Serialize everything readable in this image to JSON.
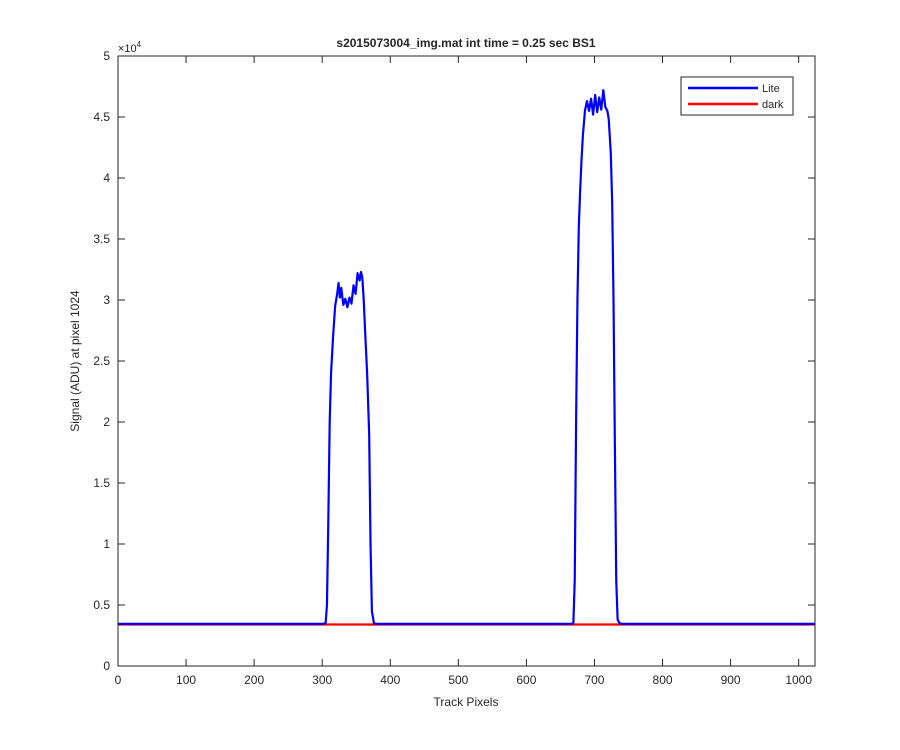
{
  "chart_data": {
    "type": "line",
    "title": "s2015073004_img.mat int time = 0.25 sec   BS1",
    "xlabel": "Track Pixels",
    "ylabel": "Signal (ADU) at pixel 1024",
    "xlim": [
      0,
      1024
    ],
    "ylim": [
      0,
      50000
    ],
    "x_ticks": [
      0,
      100,
      200,
      300,
      400,
      500,
      600,
      700,
      800,
      900,
      1000
    ],
    "x_tick_labels": [
      "0",
      "100",
      "200",
      "300",
      "400",
      "500",
      "600",
      "700",
      "800",
      "900",
      "1000"
    ],
    "y_ticks": [
      0,
      5000,
      10000,
      15000,
      20000,
      25000,
      30000,
      35000,
      40000,
      45000,
      50000
    ],
    "y_tick_labels": [
      "0",
      "0.5",
      "1",
      "1.5",
      "2",
      "2.5",
      "3",
      "3.5",
      "4",
      "4.5",
      "5"
    ],
    "y_exponent_label": "×10",
    "y_exponent": "4",
    "grid": false,
    "legend_position": "top-right",
    "series": [
      {
        "name": "Lite",
        "color": "#0000ff",
        "points": [
          [
            0,
            3450
          ],
          [
            300,
            3450
          ],
          [
            305,
            3500
          ],
          [
            307,
            5000
          ],
          [
            309,
            12000
          ],
          [
            311,
            20000
          ],
          [
            313,
            24000
          ],
          [
            316,
            27000
          ],
          [
            319,
            29500
          ],
          [
            322,
            30500
          ],
          [
            324,
            31400
          ],
          [
            326,
            30200
          ],
          [
            328,
            31000
          ],
          [
            331,
            29600
          ],
          [
            334,
            30100
          ],
          [
            337,
            29400
          ],
          [
            340,
            30200
          ],
          [
            343,
            29700
          ],
          [
            346,
            31200
          ],
          [
            349,
            30500
          ],
          [
            352,
            32200
          ],
          [
            355,
            31600
          ],
          [
            357,
            32300
          ],
          [
            359,
            31800
          ],
          [
            361,
            30000
          ],
          [
            363,
            27500
          ],
          [
            366,
            24000
          ],
          [
            369,
            19000
          ],
          [
            371,
            10000
          ],
          [
            373,
            4500
          ],
          [
            376,
            3500
          ],
          [
            380,
            3450
          ],
          [
            665,
            3450
          ],
          [
            669,
            3500
          ],
          [
            671,
            7000
          ],
          [
            673,
            20000
          ],
          [
            675,
            30000
          ],
          [
            677,
            36000
          ],
          [
            679,
            39000
          ],
          [
            681,
            41500
          ],
          [
            683,
            43500
          ],
          [
            686,
            45500
          ],
          [
            689,
            46300
          ],
          [
            692,
            45500
          ],
          [
            695,
            46500
          ],
          [
            698,
            45200
          ],
          [
            701,
            46800
          ],
          [
            704,
            45400
          ],
          [
            707,
            46600
          ],
          [
            710,
            45600
          ],
          [
            713,
            47200
          ],
          [
            716,
            45800
          ],
          [
            719,
            45500
          ],
          [
            721,
            44800
          ],
          [
            724,
            42000
          ],
          [
            726,
            38000
          ],
          [
            728,
            30000
          ],
          [
            730,
            18000
          ],
          [
            732,
            7000
          ],
          [
            734,
            3800
          ],
          [
            737,
            3500
          ],
          [
            742,
            3450
          ],
          [
            1024,
            3450
          ]
        ]
      },
      {
        "name": "dark",
        "color": "#ff0000",
        "points": [
          [
            0,
            3400
          ],
          [
            1024,
            3400
          ]
        ]
      }
    ]
  }
}
